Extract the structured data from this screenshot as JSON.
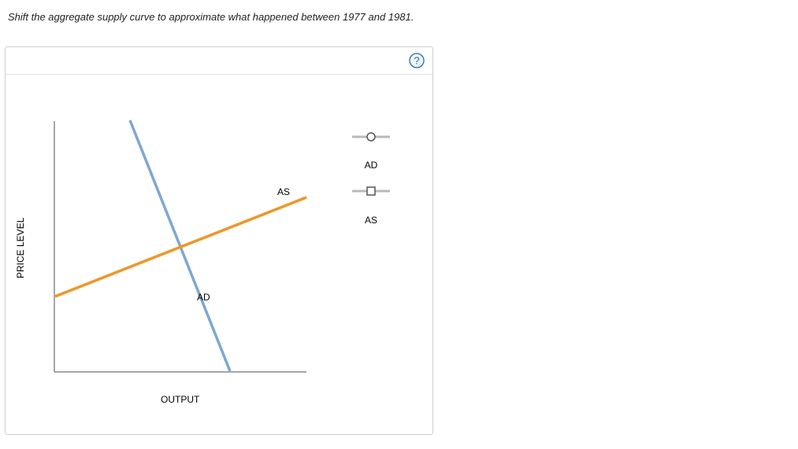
{
  "question": {
    "text": "Shift the aggregate supply curve to approximate what happened between 1977 and 1981."
  },
  "help": {
    "icon": "question-mark-icon",
    "symbol": "?",
    "color": "#1f6fb2"
  },
  "graph": {
    "y_axis_label": "PRICE LEVEL",
    "x_axis_label": "OUTPUT",
    "curves": [
      {
        "name": "AD",
        "label": "AD",
        "color": "#7aa9d6",
        "slope": "downward"
      },
      {
        "name": "AS",
        "label": "AS",
        "color": "#f7941d",
        "slope": "upward"
      }
    ]
  },
  "toolbox": {
    "tools": [
      {
        "label": "AD",
        "marker": "circle",
        "color": "#7aa9d6"
      },
      {
        "label": "AS",
        "marker": "square",
        "color": "#f7941d"
      }
    ]
  }
}
